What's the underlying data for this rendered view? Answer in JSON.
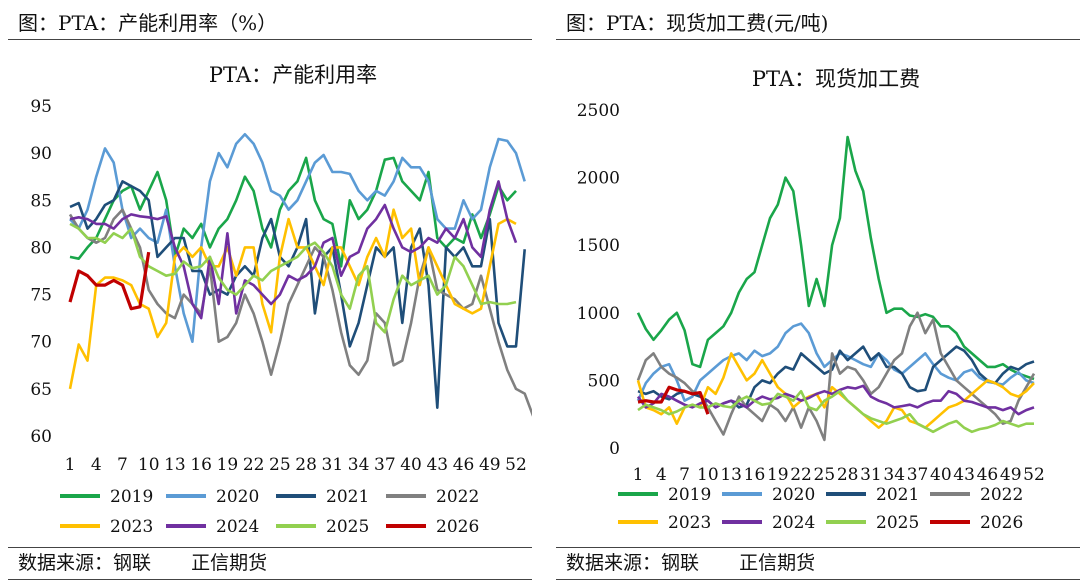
{
  "source_label": "数据来源：钢联",
  "company_label": "正信期货",
  "panels": [
    {
      "figure_label": "图：PTA：产能利用率（%）",
      "chart_data": {
        "type": "line",
        "title": "PTA：产能利用率",
        "xlabel": "",
        "ylabel": "",
        "ylim": [
          60,
          95
        ],
        "yticks": [
          60,
          65,
          70,
          75,
          80,
          85,
          90,
          95
        ],
        "xlim": [
          1,
          52
        ],
        "xticks": [
          1,
          4,
          7,
          10,
          13,
          16,
          19,
          22,
          25,
          28,
          31,
          34,
          37,
          40,
          43,
          46,
          49,
          52
        ],
        "series": [
          {
            "name": "2019",
            "color": "#1aa64a",
            "y": [
              79,
              78.8,
              80,
              81,
              83,
              85,
              86,
              86.5,
              84,
              86,
              88,
              85,
              79,
              82,
              81,
              82.5,
              80,
              82,
              83,
              85,
              87.5,
              86,
              82,
              80,
              84,
              86,
              87,
              89.5,
              85,
              83,
              82.5,
              78,
              85,
              83,
              84,
              86,
              89.3,
              89.5,
              87,
              86,
              85,
              88,
              81,
              80,
              81,
              80.5,
              83.5,
              81,
              83.5,
              86.5,
              85,
              86
            ]
          },
          {
            "name": "2020",
            "color": "#5b9bd5",
            "y": [
              83,
              82,
              84,
              87.5,
              90.5,
              89,
              84,
              81,
              82,
              81,
              80.5,
              84,
              78,
              73,
              70,
              80,
              87,
              90,
              88.5,
              91,
              92,
              91,
              89,
              86,
              85.5,
              84,
              85,
              87,
              89,
              89.8,
              88,
              88,
              87.8,
              86,
              85,
              86,
              85.5,
              87,
              89.5,
              88.5,
              88.5,
              87,
              83,
              82,
              82,
              85,
              83,
              84,
              88.5,
              91.5,
              91.3,
              90,
              87
            ]
          },
          {
            "name": "2021",
            "color": "#1f4e79",
            "y": [
              84.3,
              84.7,
              82,
              83,
              84.5,
              85,
              87,
              86.5,
              86,
              85,
              79,
              80,
              81,
              81,
              77.5,
              77.5,
              75,
              75.5,
              75,
              77,
              78,
              77,
              81,
              83,
              79,
              78,
              80,
              83,
              73,
              79,
              80,
              75,
              69.5,
              72,
              76,
              80,
              79,
              80,
              72,
              80,
              82,
              76,
              63,
              80,
              79,
              80,
              78,
              78,
              83,
              72,
              69.5,
              69.5,
              79.8
            ]
          },
          {
            "name": "2022",
            "color": "#808080",
            "y": [
              83.5,
              82,
              81,
              80.5,
              81,
              83,
              84,
              82,
              80,
              75.5,
              74,
              73,
              72.5,
              75,
              74,
              73,
              78,
              70,
              70.5,
              72,
              75,
              73,
              70,
              66.5,
              70,
              74,
              76,
              78,
              80,
              79,
              75.5,
              71,
              67.5,
              66.5,
              68,
              73,
              72,
              67.5,
              68,
              72,
              77,
              80,
              75.5,
              75,
              74.5,
              73.5,
              74,
              77,
              73.5,
              70,
              67,
              65,
              64.5,
              62
            ]
          },
          {
            "name": "2023",
            "color": "#ffc000",
            "y": [
              65,
              69.7,
              68,
              76,
              76.8,
              76.8,
              76.5,
              76,
              74,
              73.5,
              70.5,
              72,
              79,
              80,
              79,
              80,
              78,
              78,
              80,
              77,
              80,
              80,
              74,
              71,
              79,
              83,
              80,
              80,
              78,
              76,
              80,
              80,
              78,
              76,
              79,
              81,
              79,
              84,
              81,
              82,
              76,
              80,
              78,
              76,
              74,
              73.5,
              73,
              73.5,
              78,
              82.5,
              83,
              82.5
            ]
          },
          {
            "name": "2024",
            "color": "#7030a0",
            "y": [
              83,
              83.2,
              83,
              82.5,
              82.5,
              82,
              83,
              83.5,
              83.3,
              83.2,
              83,
              83.3,
              80,
              78,
              74,
              72.5,
              79,
              74,
              81.5,
              73,
              76.5,
              76,
              75,
              74,
              75,
              77,
              76.5,
              77,
              78,
              80.5,
              81,
              77,
              79,
              79.5,
              82,
              83,
              84.5,
              82,
              80,
              79.5,
              80,
              81,
              80.5,
              82,
              81,
              83,
              80,
              79,
              84,
              87,
              83,
              80.5
            ]
          },
          {
            "name": "2025",
            "color": "#92d050",
            "y": [
              82.5,
              82,
              81,
              81,
              80.5,
              81.5,
              81,
              82,
              79,
              78,
              77.5,
              77,
              77.2,
              78.5,
              77.8,
              78,
              79,
              76.8,
              75.5,
              75,
              76,
              77,
              76.5,
              77.5,
              78,
              78.5,
              79,
              80,
              80.5,
              79.5,
              78,
              75,
              73.5,
              77,
              78,
              72,
              71,
              74.5,
              77,
              76,
              76.5,
              77,
              75,
              76,
              79,
              78,
              76,
              74,
              74.2,
              74,
              74,
              74.2
            ]
          },
          {
            "name": "2026",
            "color": "#c00000",
            "y": [
              74.2,
              77.5,
              77,
              76,
              76,
              76.5,
              76,
              73.5,
              73.7,
              79.5
            ]
          }
        ]
      }
    },
    {
      "figure_label": "图：PTA：现货加工费(元/吨)",
      "chart_data": {
        "type": "line",
        "title": "PTA：现货加工费",
        "xlabel": "",
        "ylabel": "",
        "ylim": [
          0,
          2500
        ],
        "yticks": [
          0,
          500,
          1000,
          1500,
          2000,
          2500
        ],
        "xlim": [
          1,
          52
        ],
        "xticks": [
          1,
          4,
          7,
          10,
          13,
          16,
          19,
          22,
          25,
          28,
          31,
          34,
          37,
          40,
          43,
          46,
          49,
          52
        ],
        "series": [
          {
            "name": "2019",
            "color": "#1aa64a",
            "y": [
              1000,
              880,
              800,
              870,
              950,
              1000,
              870,
              620,
              600,
              800,
              850,
              900,
              1000,
              1150,
              1250,
              1300,
              1500,
              1700,
              1800,
              2000,
              1900,
              1500,
              1050,
              1250,
              1050,
              1500,
              1700,
              2300,
              2050,
              1900,
              1550,
              1250,
              1000,
              1030,
              1030,
              980,
              970,
              990,
              970,
              900,
              900,
              850,
              750,
              700,
              650,
              600,
              600,
              620,
              580,
              550,
              530,
              510
            ]
          },
          {
            "name": "2020",
            "color": "#5b9bd5",
            "y": [
              350,
              480,
              550,
              600,
              620,
              500,
              350,
              380,
              500,
              550,
              600,
              650,
              680,
              700,
              650,
              720,
              680,
              700,
              750,
              850,
              900,
              920,
              850,
              700,
              600,
              650,
              700,
              680,
              650,
              620,
              600,
              700,
              650,
              580,
              550,
              600,
              650,
              700,
              620,
              550,
              520,
              500,
              560,
              580,
              520,
              490,
              480,
              470,
              520,
              560,
              500,
              480
            ]
          },
          {
            "name": "2021",
            "color": "#1f4e79",
            "y": [
              420,
              400,
              420,
              380,
              360,
              400,
              420,
              400,
              380,
              350,
              300,
              330,
              350,
              300,
              320,
              450,
              500,
              480,
              550,
              600,
              580,
              700,
              650,
              600,
              550,
              580,
              720,
              650,
              700,
              750,
              650,
              700,
              600,
              600,
              550,
              450,
              420,
              430,
              600,
              650,
              700,
              750,
              720,
              650,
              550,
              500,
              480,
              550,
              600,
              580,
              620,
              640
            ]
          },
          {
            "name": "2022",
            "color": "#808080",
            "y": [
              500,
              650,
              700,
              600,
              550,
              520,
              480,
              420,
              400,
              300,
              200,
              100,
              250,
              380,
              300,
              250,
              200,
              320,
              280,
              200,
              300,
              150,
              300,
              200,
              60,
              700,
              550,
              600,
              580,
              500,
              400,
              450,
              550,
              650,
              700,
              900,
              1000,
              850,
              950,
              700,
              600,
              500,
              450,
              400,
              350,
              300,
              250,
              180,
              200,
              350,
              450,
              550
            ]
          },
          {
            "name": "2023",
            "color": "#ffc000",
            "y": [
              500,
              300,
              280,
              250,
              300,
              180,
              300,
              320,
              300,
              450,
              400,
              520,
              700,
              600,
              500,
              550,
              650,
              550,
              450,
              400,
              300,
              350,
              380,
              400,
              300,
              450,
              400,
              350,
              300,
              250,
              200,
              150,
              200,
              300,
              280,
              200,
              180,
              150,
              200,
              250,
              300,
              320,
              350,
              400,
              450,
              500,
              480,
              450,
              400,
              380,
              420,
              480
            ]
          },
          {
            "name": "2024",
            "color": "#7030a0",
            "y": [
              380,
              300,
              330,
              400,
              380,
              350,
              320,
              300,
              330,
              350,
              300,
              330,
              350,
              330,
              300,
              350,
              380,
              360,
              370,
              400,
              380,
              350,
              370,
              400,
              420,
              400,
              430,
              450,
              440,
              460,
              380,
              350,
              330,
              300,
              310,
              320,
              300,
              330,
              350,
              350,
              420,
              400,
              350,
              340,
              320,
              300,
              300,
              280,
              300,
              250,
              280,
              300
            ]
          },
          {
            "name": "2025",
            "color": "#92d050",
            "y": [
              280,
              320,
              300,
              280,
              250,
              270,
              300,
              320,
              300,
              300,
              330,
              310,
              300,
              350,
              380,
              350,
              320,
              330,
              400,
              380,
              350,
              420,
              300,
              280,
              350,
              380,
              420,
              350,
              300,
              250,
              220,
              200,
              180,
              200,
              220,
              250,
              180,
              150,
              120,
              150,
              180,
              200,
              150,
              120,
              140,
              150,
              170,
              200,
              180,
              160,
              180,
              180
            ]
          },
          {
            "name": "2026",
            "color": "#c00000",
            "y": [
              340,
              350,
              340,
              340,
              450,
              430,
              420,
              400,
              410,
              250
            ]
          }
        ]
      }
    }
  ]
}
